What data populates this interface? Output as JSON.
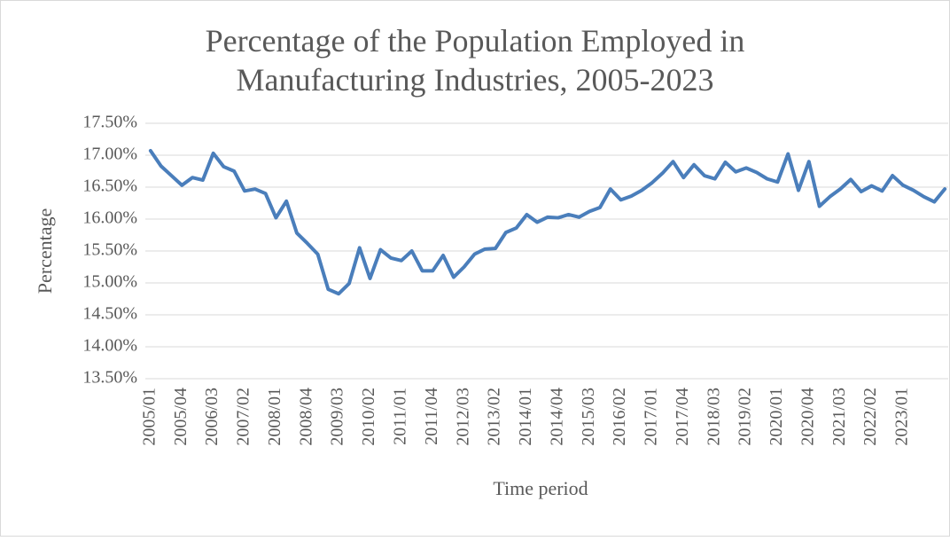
{
  "chart_data": {
    "type": "line",
    "title": "Percentage of the Population Employed in Manufacturing Industries, 2005-2023",
    "x_label": "Time period",
    "y_label": "Percentage",
    "categories": [
      "2005/01",
      null,
      null,
      "2005/04",
      null,
      null,
      "2006/03",
      null,
      null,
      "2007/02",
      null,
      null,
      "2008/01",
      null,
      null,
      "2008/04",
      null,
      null,
      "2009/03",
      null,
      null,
      "2010/02",
      null,
      null,
      "2011/01",
      null,
      null,
      "2011/04",
      null,
      null,
      "2012/03",
      null,
      null,
      "2013/02",
      null,
      null,
      "2014/01",
      null,
      null,
      "2014/04",
      null,
      null,
      "2015/03",
      null,
      null,
      "2016/02",
      null,
      null,
      "2017/01",
      null,
      null,
      "2017/04",
      null,
      null,
      "2018/03",
      null,
      null,
      "2019/02",
      null,
      null,
      "2020/01",
      null,
      null,
      "2020/04",
      null,
      null,
      "2021/03",
      null,
      null,
      "2022/02",
      null,
      null,
      "2023/01",
      null,
      null,
      null,
      null
    ],
    "series": [
      {
        "name": "Percentage",
        "color": "#4a7ebb",
        "values": [
          17.07,
          16.83,
          16.68,
          16.53,
          16.65,
          16.61,
          17.03,
          16.82,
          16.75,
          16.44,
          16.47,
          16.4,
          16.02,
          16.28,
          15.78,
          15.62,
          15.45,
          14.9,
          14.83,
          14.99,
          15.55,
          15.07,
          15.52,
          15.39,
          15.35,
          15.5,
          15.19,
          15.19,
          15.43,
          15.09,
          15.25,
          15.45,
          15.53,
          15.54,
          15.79,
          15.86,
          16.07,
          15.95,
          16.03,
          16.02,
          16.07,
          16.03,
          16.12,
          16.18,
          16.47,
          16.3,
          16.36,
          16.45,
          16.57,
          16.72,
          16.9,
          16.65,
          16.85,
          16.68,
          16.63,
          16.89,
          16.74,
          16.8,
          16.73,
          16.63,
          16.58,
          17.02,
          16.45,
          16.9,
          16.2,
          16.35,
          16.47,
          16.62,
          16.43,
          16.52,
          16.44,
          16.68,
          16.53,
          16.45,
          16.35,
          16.27,
          16.47
        ]
      }
    ],
    "ylim": [
      13.5,
      17.5
    ],
    "yticks": [
      {
        "value": 13.5,
        "label": "13.50%"
      },
      {
        "value": 14,
        "label": "14.00%"
      },
      {
        "value": 14.5,
        "label": "14.50%"
      },
      {
        "value": 15,
        "label": "15.00%"
      },
      {
        "value": 15.5,
        "label": "15.50%"
      },
      {
        "value": 16,
        "label": "16.00%"
      },
      {
        "value": 16.5,
        "label": "16.50%"
      },
      {
        "value": 17,
        "label": "17.00%"
      },
      {
        "value": 17.5,
        "label": "17.50%"
      }
    ],
    "grid": true
  }
}
